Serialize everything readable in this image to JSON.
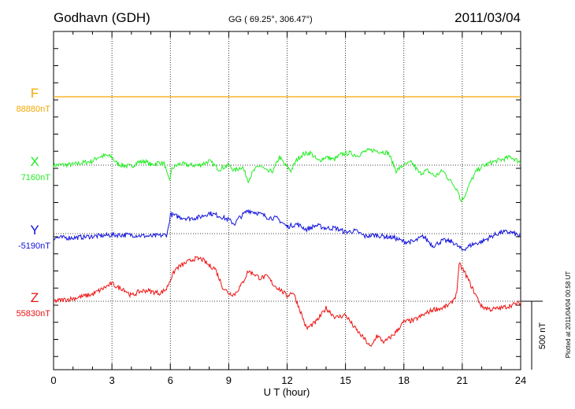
{
  "header": {
    "station": "Godhavn (GDH)",
    "coords": "GG ( 69.25°, 306.47°)",
    "date": "2011/03/04"
  },
  "side_label": "Plotted at 2011/04/04 00:58 UT",
  "scale_label": "500 nT",
  "chart_data": {
    "type": "line",
    "xlabel": "U T (hour)",
    "x_ticks": [
      "0",
      "3",
      "6",
      "9",
      "12",
      "15",
      "18",
      "21",
      "24"
    ],
    "xlim": [
      0,
      24
    ],
    "scale_bar_nT": 500,
    "series": [
      {
        "name": "F",
        "baseline_label": "88880nT",
        "color": "#f5a800",
        "x": [
          0,
          24
        ],
        "y": [
          0,
          0
        ]
      },
      {
        "name": "X",
        "baseline_label": "7160nT",
        "color": "#22ee22",
        "x": [
          0,
          1,
          2,
          2.3,
          2.7,
          3,
          3.2,
          3.5,
          4,
          4.3,
          4.7,
          5,
          5.4,
          5.7,
          5.85,
          5.95,
          6.1,
          6.5,
          7,
          7.5,
          8,
          8.5,
          9,
          9.3,
          9.7,
          10,
          10.3,
          10.6,
          11,
          11.3,
          11.6,
          11.9,
          12.2,
          12.5,
          12.8,
          13.2,
          13.6,
          14,
          14.4,
          14.8,
          15.2,
          15.6,
          16,
          16.4,
          16.8,
          17.2,
          17.6,
          18,
          18.4,
          18.8,
          19.2,
          19.6,
          20,
          20.3,
          20.6,
          20.8,
          20.9,
          21.1,
          21.4,
          21.7,
          22,
          22.5,
          23,
          23.5,
          24
        ],
        "y": [
          0,
          5,
          30,
          60,
          70,
          60,
          20,
          0,
          -10,
          20,
          30,
          0,
          20,
          10,
          -80,
          -110,
          -20,
          10,
          0,
          0,
          30,
          -30,
          0,
          -40,
          -10,
          -110,
          -40,
          0,
          -50,
          -40,
          60,
          0,
          -40,
          40,
          80,
          90,
          30,
          60,
          40,
          80,
          90,
          70,
          100,
          110,
          100,
          90,
          -40,
          0,
          20,
          -60,
          -40,
          -80,
          -40,
          -100,
          -150,
          -190,
          -260,
          -230,
          -130,
          -50,
          -10,
          20,
          40,
          60,
          20
        ]
      },
      {
        "name": "Y",
        "baseline_label": "-5190nT",
        "color": "#1111dd",
        "x": [
          0,
          1,
          2,
          3,
          4,
          5,
          5.8,
          5.9,
          6,
          6.5,
          7,
          7.5,
          8,
          8.5,
          9,
          9.3,
          9.5,
          10,
          10.5,
          11,
          11.5,
          12,
          12.5,
          13,
          13.5,
          14,
          14.5,
          15,
          15.5,
          16,
          16.5,
          17,
          17.5,
          18,
          18.5,
          19,
          19.5,
          20,
          20.5,
          21,
          21.5,
          22,
          22.5,
          23,
          23.5,
          24
        ],
        "y": [
          -30,
          -30,
          -20,
          -10,
          -10,
          -20,
          -10,
          40,
          140,
          120,
          110,
          120,
          150,
          130,
          100,
          70,
          110,
          170,
          150,
          120,
          110,
          50,
          70,
          30,
          60,
          40,
          40,
          10,
          20,
          -20,
          -10,
          -20,
          -30,
          -60,
          -60,
          -20,
          -90,
          -50,
          -60,
          -120,
          -80,
          -60,
          -20,
          10,
          10,
          -20
        ]
      },
      {
        "name": "Z",
        "baseline_label": "55830nT",
        "color": "#ee1111",
        "x": [
          0,
          1,
          2,
          2.5,
          3,
          3.3,
          3.6,
          4,
          4.4,
          4.8,
          5,
          5.5,
          5.8,
          6,
          6.3,
          6.8,
          7.2,
          7.6,
          8,
          8.3,
          8.7,
          9,
          9.3,
          9.7,
          10,
          10.3,
          10.6,
          11,
          11.3,
          11.6,
          12,
          12.3,
          12.6,
          13,
          13.5,
          14,
          14.5,
          15,
          15.5,
          16,
          16.3,
          16.6,
          17,
          17.5,
          18,
          18.5,
          19,
          19.5,
          20,
          20.4,
          20.7,
          20.85,
          21,
          21.2,
          21.5,
          22,
          22.5,
          23,
          23.5,
          24
        ],
        "y": [
          0,
          20,
          50,
          90,
          130,
          100,
          90,
          40,
          70,
          80,
          70,
          60,
          90,
          160,
          240,
          280,
          310,
          310,
          260,
          240,
          100,
          60,
          50,
          130,
          220,
          200,
          170,
          180,
          120,
          90,
          40,
          70,
          -40,
          -200,
          -150,
          -50,
          -120,
          -100,
          -200,
          -280,
          -340,
          -250,
          -300,
          -240,
          -150,
          -140,
          -100,
          -60,
          -50,
          -20,
          50,
          270,
          240,
          190,
          100,
          -40,
          -60,
          -50,
          -30,
          -10
        ]
      }
    ]
  }
}
